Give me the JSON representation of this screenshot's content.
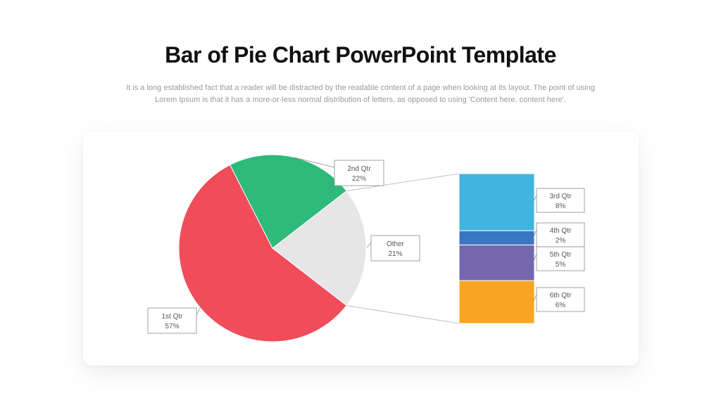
{
  "header": {
    "title": "Bar of Pie Chart PowerPoint Template",
    "subtitle_line1": "It is a long established fact that a reader will be distracted by the readable content of a page when looking at its layout. The point of using",
    "subtitle_line2": "Lorem Ipsum is that it has a more-or-less normal distribution of letters, as opposed to using 'Content here, content here'."
  },
  "chart_data": {
    "type": "bar-of-pie",
    "pie": [
      {
        "name": "1st Qtr",
        "label": "57%",
        "value": 57,
        "color": "#F04C5A"
      },
      {
        "name": "2nd Qtr",
        "label": "22%",
        "value": 22,
        "color": "#2EBA7B"
      },
      {
        "name": "Other",
        "label": "21%",
        "value": 21,
        "color": "#E6E6E6"
      }
    ],
    "bar": [
      {
        "name": "3rd Qtr",
        "label": "8%",
        "value": 8,
        "color": "#42B4E0"
      },
      {
        "name": "4th Qtr",
        "label": "2%",
        "value": 2,
        "color": "#3A76C1"
      },
      {
        "name": "5th Qtr",
        "label": "5%",
        "value": 5,
        "color": "#7567AD"
      },
      {
        "name": "6th Qtr",
        "label": "6%",
        "value": 6,
        "color": "#F8A61F"
      }
    ],
    "connector_color": "#B5B5B5"
  }
}
